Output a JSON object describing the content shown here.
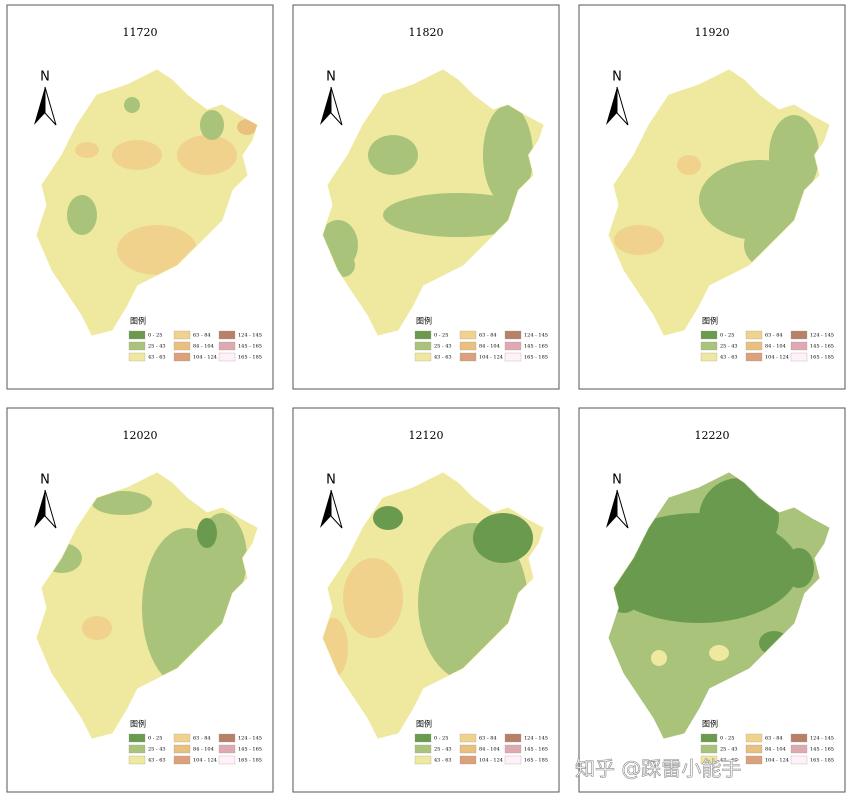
{
  "panels": [
    {
      "title": "11720"
    },
    {
      "title": "11820"
    },
    {
      "title": "11920"
    },
    {
      "title": "12020"
    },
    {
      "title": "12120"
    },
    {
      "title": "12220"
    }
  ],
  "north": "N",
  "legend": {
    "title": "图例",
    "items": [
      {
        "label": "0 - 25",
        "color": "#6a9a4e"
      },
      {
        "label": "25 - 43",
        "color": "#a9c37a"
      },
      {
        "label": "43 - 63",
        "color": "#efe9a0"
      },
      {
        "label": "63 - 84",
        "color": "#f0d28c"
      },
      {
        "label": "84 - 104",
        "color": "#eac07e"
      },
      {
        "label": "104 - 124",
        "color": "#dca07a"
      },
      {
        "label": "124 - 145",
        "color": "#b98068"
      },
      {
        "label": "145 - 165",
        "color": "#dcaab0"
      },
      {
        "label": "165 - 185",
        "color": "#fff0fa"
      }
    ]
  },
  "watermark": "知乎 @踩雷小能手"
}
